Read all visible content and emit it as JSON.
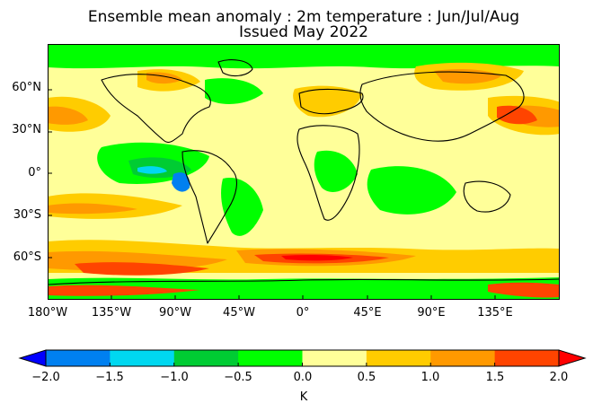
{
  "title_line1": "Ensemble mean anomaly : 2m temperature : Jun/Jul/Aug",
  "title_line2": "Issued May 2022",
  "lat_labels": [
    "60°N",
    "30°N",
    "0°",
    "30°S",
    "60°S"
  ],
  "lon_labels": [
    "180°W",
    "135°W",
    "90°W",
    "45°W",
    "0°",
    "45°E",
    "90°E",
    "135°E"
  ],
  "colorbar": {
    "ticks": [
      "−2.0",
      "−1.5",
      "−1.0",
      "−0.5",
      "0.0",
      "0.5",
      "1.0",
      "1.5",
      "2.0"
    ],
    "units": "K",
    "colors": [
      "#0000ff",
      "#0080f0",
      "#00d8f0",
      "#00cc33",
      "#00ff00",
      "#ffff99",
      "#ffcc00",
      "#ff9900",
      "#ff4400",
      "#ff0000"
    ]
  },
  "chart_data": {
    "type": "heatmap",
    "variable": "2m temperature ensemble mean anomaly",
    "season": "Jun/Jul/Aug",
    "issued": "May 2022",
    "lon_range": [
      -180,
      180
    ],
    "lat_range": [
      -90,
      90
    ],
    "color_levels": [
      -2.0,
      -1.5,
      -1.0,
      -0.5,
      0.0,
      0.5,
      1.0,
      1.5,
      2.0
    ],
    "extend": "both",
    "regions": [
      {
        "region": "Southern Ocean 55-70°S (Pacific/Atlantic)",
        "anomaly_range": [
          1.5,
          2.0
        ]
      },
      {
        "region": "North Pacific 30-50°N",
        "anomaly_range": [
          0.5,
          1.5
        ]
      },
      {
        "region": "Equatorial East Pacific",
        "anomaly_range": [
          -1.5,
          -0.5
        ]
      },
      {
        "region": "Europe / Mediterranean",
        "anomaly_range": [
          0.5,
          1.5
        ]
      },
      {
        "region": "East Asia / Japan",
        "anomaly_range": [
          1.0,
          2.0
        ]
      },
      {
        "region": "Indian Ocean",
        "anomaly_range": [
          -0.5,
          0.5
        ]
      }
    ]
  }
}
